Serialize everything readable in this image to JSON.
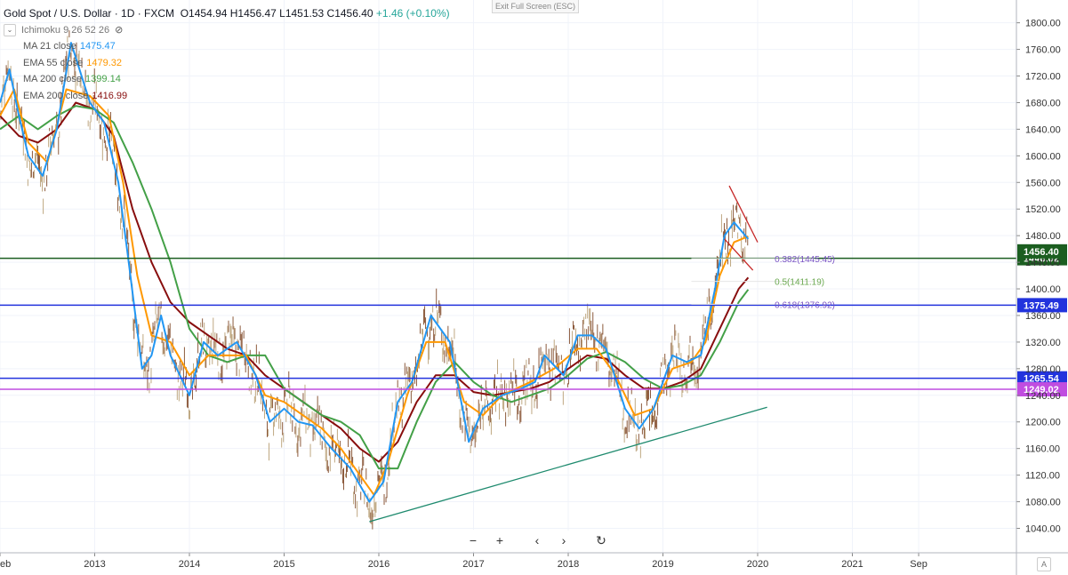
{
  "header": {
    "symbol": "Gold Spot / U.S. Dollar · 1D · FXCM",
    "ohlc": "O1454.94 H1456.47 L1451.53 C1456.40",
    "change": "+1.46 (+0.10%)",
    "ichimoku": "Ichimoku 9 26 52 26",
    "exit_label": "Exit Full Screen (ESC)"
  },
  "indicators": [
    {
      "label": "MA 21 close",
      "value": "1475.47",
      "color": "#2196f3"
    },
    {
      "label": "EMA 55 close",
      "value": "1479.32",
      "color": "#ff9800"
    },
    {
      "label": "MA 200 close",
      "value": "1399.14",
      "color": "#43a047"
    },
    {
      "label": "EMA 200 close",
      "value": "1416.99",
      "color": "#880e0e"
    }
  ],
  "icons": {
    "chevron": "chevron-down-icon",
    "visibility": "eye-off-icon",
    "zoom_out": "minus-icon",
    "zoom_in": "plus-icon",
    "scroll_left": "chevron-left-icon",
    "scroll_right": "chevron-right-icon",
    "reset": "reset-icon",
    "auto_scale": "A"
  },
  "nav": {
    "minus": "−",
    "plus": "+",
    "left": "‹",
    "right": "›",
    "reset": "↻",
    "auto": "A"
  },
  "chart_data": {
    "type": "line",
    "title": "Gold Spot / U.S. Dollar · 1D · FXCM",
    "xlabel": "",
    "ylabel": "",
    "ylim": [
      1020,
      1820
    ],
    "y_ticks": [
      1040,
      1080,
      1120,
      1160,
      1200,
      1240,
      1280,
      1320,
      1360,
      1400,
      1440,
      1480,
      1520,
      1560,
      1600,
      1640,
      1680,
      1720,
      1760,
      1800
    ],
    "x_ticks": [
      {
        "label": "eb",
        "x": 2012.0
      },
      {
        "label": "2013",
        "x": 2013.0
      },
      {
        "label": "2014",
        "x": 2014.0
      },
      {
        "label": "2015",
        "x": 2015.0
      },
      {
        "label": "2016",
        "x": 2016.0
      },
      {
        "label": "2017",
        "x": 2017.0
      },
      {
        "label": "2018",
        "x": 2018.0
      },
      {
        "label": "2019",
        "x": 2019.0
      },
      {
        "label": "2020",
        "x": 2020.0
      },
      {
        "label": "2021",
        "x": 2021.0
      },
      {
        "label": "Sep",
        "x": 2021.7
      }
    ],
    "xlim": [
      2012.0,
      2022.2
    ],
    "series": [
      {
        "name": "MA 21 close",
        "color": "#2196f3",
        "points": [
          [
            2012.0,
            1680
          ],
          [
            2012.1,
            1730
          ],
          [
            2012.2,
            1660
          ],
          [
            2012.3,
            1600
          ],
          [
            2012.45,
            1570
          ],
          [
            2012.6,
            1640
          ],
          [
            2012.75,
            1770
          ],
          [
            2012.95,
            1680
          ],
          [
            2013.1,
            1650
          ],
          [
            2013.25,
            1560
          ],
          [
            2013.35,
            1450
          ],
          [
            2013.5,
            1280
          ],
          [
            2013.6,
            1300
          ],
          [
            2013.7,
            1360
          ],
          [
            2013.8,
            1300
          ],
          [
            2014.0,
            1240
          ],
          [
            2014.15,
            1320
          ],
          [
            2014.3,
            1300
          ],
          [
            2014.5,
            1320
          ],
          [
            2014.7,
            1270
          ],
          [
            2014.85,
            1200
          ],
          [
            2015.0,
            1220
          ],
          [
            2015.15,
            1200
          ],
          [
            2015.3,
            1195
          ],
          [
            2015.5,
            1160
          ],
          [
            2015.7,
            1130
          ],
          [
            2015.9,
            1080
          ],
          [
            2016.05,
            1110
          ],
          [
            2016.2,
            1230
          ],
          [
            2016.35,
            1260
          ],
          [
            2016.55,
            1360
          ],
          [
            2016.75,
            1320
          ],
          [
            2016.95,
            1170
          ],
          [
            2017.1,
            1220
          ],
          [
            2017.3,
            1240
          ],
          [
            2017.5,
            1250
          ],
          [
            2017.65,
            1260
          ],
          [
            2017.75,
            1300
          ],
          [
            2017.95,
            1270
          ],
          [
            2018.1,
            1330
          ],
          [
            2018.25,
            1330
          ],
          [
            2018.4,
            1310
          ],
          [
            2018.6,
            1220
          ],
          [
            2018.75,
            1190
          ],
          [
            2018.9,
            1220
          ],
          [
            2019.1,
            1300
          ],
          [
            2019.25,
            1290
          ],
          [
            2019.4,
            1300
          ],
          [
            2019.55,
            1400
          ],
          [
            2019.65,
            1480
          ],
          [
            2019.75,
            1500
          ],
          [
            2019.9,
            1475
          ]
        ]
      },
      {
        "name": "EMA 55 close",
        "color": "#ff9800",
        "points": [
          [
            2012.0,
            1660
          ],
          [
            2012.15,
            1700
          ],
          [
            2012.3,
            1620
          ],
          [
            2012.5,
            1590
          ],
          [
            2012.7,
            1700
          ],
          [
            2012.95,
            1690
          ],
          [
            2013.15,
            1660
          ],
          [
            2013.3,
            1560
          ],
          [
            2013.45,
            1420
          ],
          [
            2013.6,
            1330
          ],
          [
            2013.8,
            1320
          ],
          [
            2014.0,
            1270
          ],
          [
            2014.2,
            1300
          ],
          [
            2014.4,
            1300
          ],
          [
            2014.6,
            1300
          ],
          [
            2014.8,
            1240
          ],
          [
            2015.0,
            1230
          ],
          [
            2015.2,
            1210
          ],
          [
            2015.4,
            1190
          ],
          [
            2015.6,
            1160
          ],
          [
            2015.8,
            1120
          ],
          [
            2015.95,
            1090
          ],
          [
            2016.1,
            1140
          ],
          [
            2016.3,
            1240
          ],
          [
            2016.5,
            1320
          ],
          [
            2016.7,
            1320
          ],
          [
            2016.9,
            1230
          ],
          [
            2017.1,
            1210
          ],
          [
            2017.3,
            1240
          ],
          [
            2017.6,
            1260
          ],
          [
            2017.85,
            1280
          ],
          [
            2018.1,
            1310
          ],
          [
            2018.3,
            1310
          ],
          [
            2018.5,
            1270
          ],
          [
            2018.7,
            1210
          ],
          [
            2018.9,
            1220
          ],
          [
            2019.1,
            1280
          ],
          [
            2019.3,
            1290
          ],
          [
            2019.45,
            1320
          ],
          [
            2019.6,
            1420
          ],
          [
            2019.75,
            1470
          ],
          [
            2019.9,
            1479
          ]
        ]
      },
      {
        "name": "MA 200 close",
        "color": "#43a047",
        "points": [
          [
            2012.0,
            1640
          ],
          [
            2012.2,
            1660
          ],
          [
            2012.4,
            1640
          ],
          [
            2012.6,
            1660
          ],
          [
            2012.8,
            1675
          ],
          [
            2013.0,
            1670
          ],
          [
            2013.2,
            1650
          ],
          [
            2013.4,
            1590
          ],
          [
            2013.6,
            1520
          ],
          [
            2013.8,
            1440
          ],
          [
            2014.0,
            1340
          ],
          [
            2014.2,
            1300
          ],
          [
            2014.4,
            1290
          ],
          [
            2014.6,
            1300
          ],
          [
            2014.8,
            1300
          ],
          [
            2015.0,
            1250
          ],
          [
            2015.2,
            1230
          ],
          [
            2015.4,
            1210
          ],
          [
            2015.6,
            1200
          ],
          [
            2015.8,
            1180
          ],
          [
            2016.0,
            1130
          ],
          [
            2016.2,
            1130
          ],
          [
            2016.4,
            1200
          ],
          [
            2016.6,
            1260
          ],
          [
            2016.8,
            1290
          ],
          [
            2017.0,
            1260
          ],
          [
            2017.2,
            1240
          ],
          [
            2017.4,
            1230
          ],
          [
            2017.6,
            1240
          ],
          [
            2017.8,
            1250
          ],
          [
            2018.0,
            1270
          ],
          [
            2018.2,
            1295
          ],
          [
            2018.4,
            1305
          ],
          [
            2018.6,
            1290
          ],
          [
            2018.8,
            1265
          ],
          [
            2019.0,
            1250
          ],
          [
            2019.2,
            1255
          ],
          [
            2019.4,
            1270
          ],
          [
            2019.6,
            1320
          ],
          [
            2019.8,
            1380
          ],
          [
            2019.9,
            1399
          ]
        ]
      },
      {
        "name": "EMA 200 close",
        "color": "#880e0e",
        "points": [
          [
            2012.0,
            1660
          ],
          [
            2012.2,
            1630
          ],
          [
            2012.4,
            1620
          ],
          [
            2012.6,
            1640
          ],
          [
            2012.8,
            1680
          ],
          [
            2013.0,
            1670
          ],
          [
            2013.2,
            1630
          ],
          [
            2013.4,
            1520
          ],
          [
            2013.6,
            1440
          ],
          [
            2013.8,
            1380
          ],
          [
            2014.0,
            1350
          ],
          [
            2014.2,
            1330
          ],
          [
            2014.4,
            1310
          ],
          [
            2014.6,
            1300
          ],
          [
            2014.8,
            1270
          ],
          [
            2015.0,
            1250
          ],
          [
            2015.2,
            1230
          ],
          [
            2015.4,
            1210
          ],
          [
            2015.6,
            1190
          ],
          [
            2015.8,
            1160
          ],
          [
            2016.0,
            1140
          ],
          [
            2016.2,
            1170
          ],
          [
            2016.4,
            1230
          ],
          [
            2016.6,
            1270
          ],
          [
            2016.8,
            1270
          ],
          [
            2017.0,
            1245
          ],
          [
            2017.2,
            1240
          ],
          [
            2017.4,
            1245
          ],
          [
            2017.6,
            1250
          ],
          [
            2017.8,
            1260
          ],
          [
            2018.0,
            1280
          ],
          [
            2018.2,
            1300
          ],
          [
            2018.4,
            1295
          ],
          [
            2018.6,
            1270
          ],
          [
            2018.8,
            1250
          ],
          [
            2019.0,
            1250
          ],
          [
            2019.2,
            1260
          ],
          [
            2019.4,
            1280
          ],
          [
            2019.6,
            1340
          ],
          [
            2019.8,
            1400
          ],
          [
            2019.9,
            1417
          ]
        ]
      }
    ],
    "horizontal_lines": [
      {
        "price": 1446.02,
        "label": "1446.02",
        "color": "#1b5e20"
      },
      {
        "price": 1375.49,
        "label": "1375.49",
        "color": "#2233dd"
      },
      {
        "price": 1265.54,
        "label": "1265.54",
        "color": "#2233dd"
      },
      {
        "price": 1249.02,
        "label": "1249.02",
        "color": "#c04de0"
      }
    ],
    "last_price": {
      "price": 1456.4,
      "label": "1456.40",
      "color": "#1b5e20"
    },
    "fib_levels": [
      {
        "label": "0.382(1445.45)",
        "price": 1445.45,
        "color": "#7b55c5"
      },
      {
        "label": "0.5(1411.19)",
        "price": 1411.19,
        "color": "#6aa84f"
      },
      {
        "label": "0.618(1376.92)",
        "price": 1376.92,
        "color": "#7b55c5"
      }
    ],
    "trendlines": [
      {
        "color": "#1e8a6e",
        "from": [
          2015.9,
          1050
        ],
        "to": [
          2020.1,
          1222
        ]
      },
      {
        "color": "#c62828",
        "from": [
          2019.7,
          1555
        ],
        "to": [
          2020.0,
          1470
        ]
      },
      {
        "color": "#c62828",
        "from": [
          2019.65,
          1475
        ],
        "to": [
          2019.95,
          1428
        ]
      }
    ]
  }
}
